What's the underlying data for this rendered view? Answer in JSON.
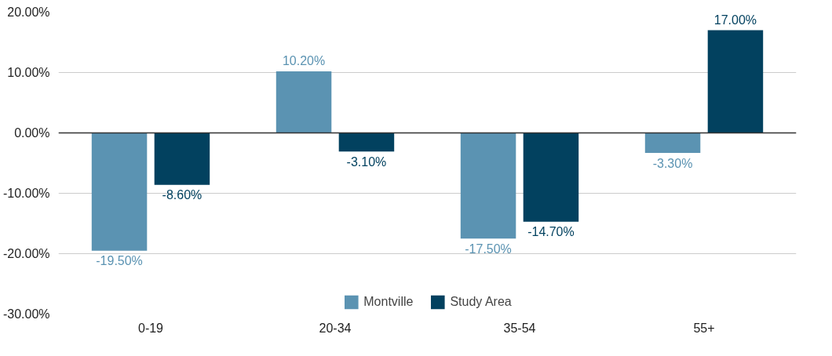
{
  "chart_data": {
    "type": "bar",
    "categories": [
      "0-19",
      "20-34",
      "35-54",
      "55+"
    ],
    "series": [
      {
        "name": "Montville",
        "color": "#5b93b2",
        "values": [
          -19.5,
          10.2,
          -17.5,
          -3.3
        ],
        "value_labels": [
          "-19.50%",
          "10.20%",
          "-17.50%",
          "-3.30%"
        ]
      },
      {
        "name": "Study Area",
        "color": "#02415f",
        "values": [
          -8.6,
          -3.1,
          -14.7,
          17.0
        ],
        "value_labels": [
          "-8.60%",
          "-3.10%",
          "-14.70%",
          "17.00%"
        ]
      }
    ],
    "ylim": [
      -30,
      20
    ],
    "yticks": [
      {
        "value": -30,
        "label": "-30.00%"
      },
      {
        "value": -20,
        "label": "-20.00%"
      },
      {
        "value": -10,
        "label": "-10.00%"
      },
      {
        "value": 0,
        "label": "0.00%"
      },
      {
        "value": 10,
        "label": "10.00%"
      },
      {
        "value": 20,
        "label": "20.00%"
      }
    ],
    "grid": "y",
    "legend": "bottom"
  }
}
